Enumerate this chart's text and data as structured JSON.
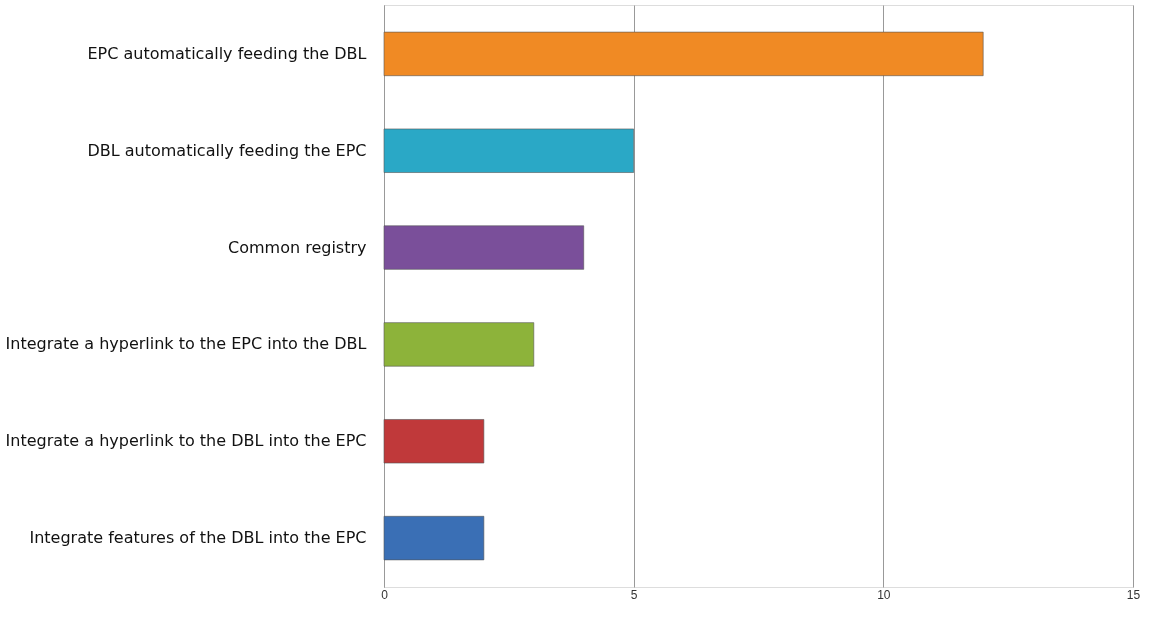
{
  "chart_data": {
    "type": "bar",
    "orientation": "horizontal",
    "categories": [
      "EPC automatically feeding the DBL",
      "DBL automatically feeding the EPC",
      "Common registry",
      "Integrate a hyperlink to the EPC into the DBL",
      "Integrate a hyperlink to the DBL into the EPC",
      "Integrate features of the DBL into the EPC"
    ],
    "values": [
      12,
      5,
      4,
      3,
      2,
      2
    ],
    "colors": [
      "#f08a24",
      "#2aa8c6",
      "#7a4f9a",
      "#8db33a",
      "#c0393a",
      "#3a6fb5"
    ],
    "xlim": [
      0,
      15
    ],
    "xticks": [
      0,
      5,
      10,
      15
    ],
    "grid": "x",
    "legend": false
  }
}
